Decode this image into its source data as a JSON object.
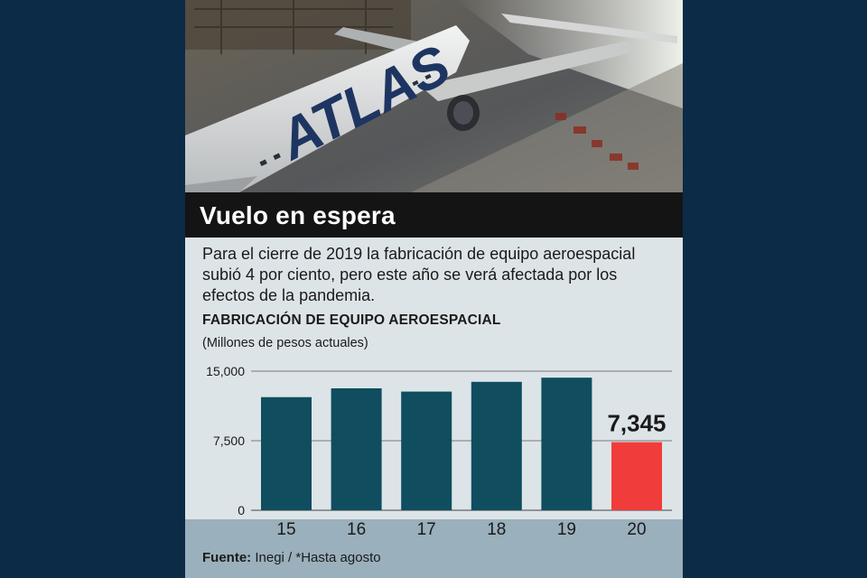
{
  "headline": "Vuelo en espera",
  "body": "Para el cierre de 2019 la fabricación de equipo aeroespacial subió 4 por ciento, pero este año se verá afectada por los efectos de la pandemia.",
  "photo": {
    "brand_text": "ATLAS"
  },
  "chart_data": {
    "type": "bar",
    "title": "FABRICACIÓN DE EQUIPO AEROESPACIAL",
    "unit_label": "(Millones de pesos actuales)",
    "categories": [
      "15",
      "16",
      "17",
      "18",
      "19",
      "20"
    ],
    "values": [
      12200,
      13150,
      12800,
      13850,
      14300,
      7345
    ],
    "highlight": {
      "index": 5,
      "label": "7,345"
    },
    "yticks": [
      0,
      7500,
      15000
    ],
    "ytick_labels": [
      "0",
      "7,500",
      "15,000"
    ],
    "ylim": [
      0,
      15000
    ],
    "grid": true,
    "colors": {
      "bar": "#0f4d5f",
      "highlight": "#f03c3a"
    }
  },
  "footer": {
    "source_label": "Fuente:",
    "source_text": " Inegi / *Hasta agosto"
  }
}
